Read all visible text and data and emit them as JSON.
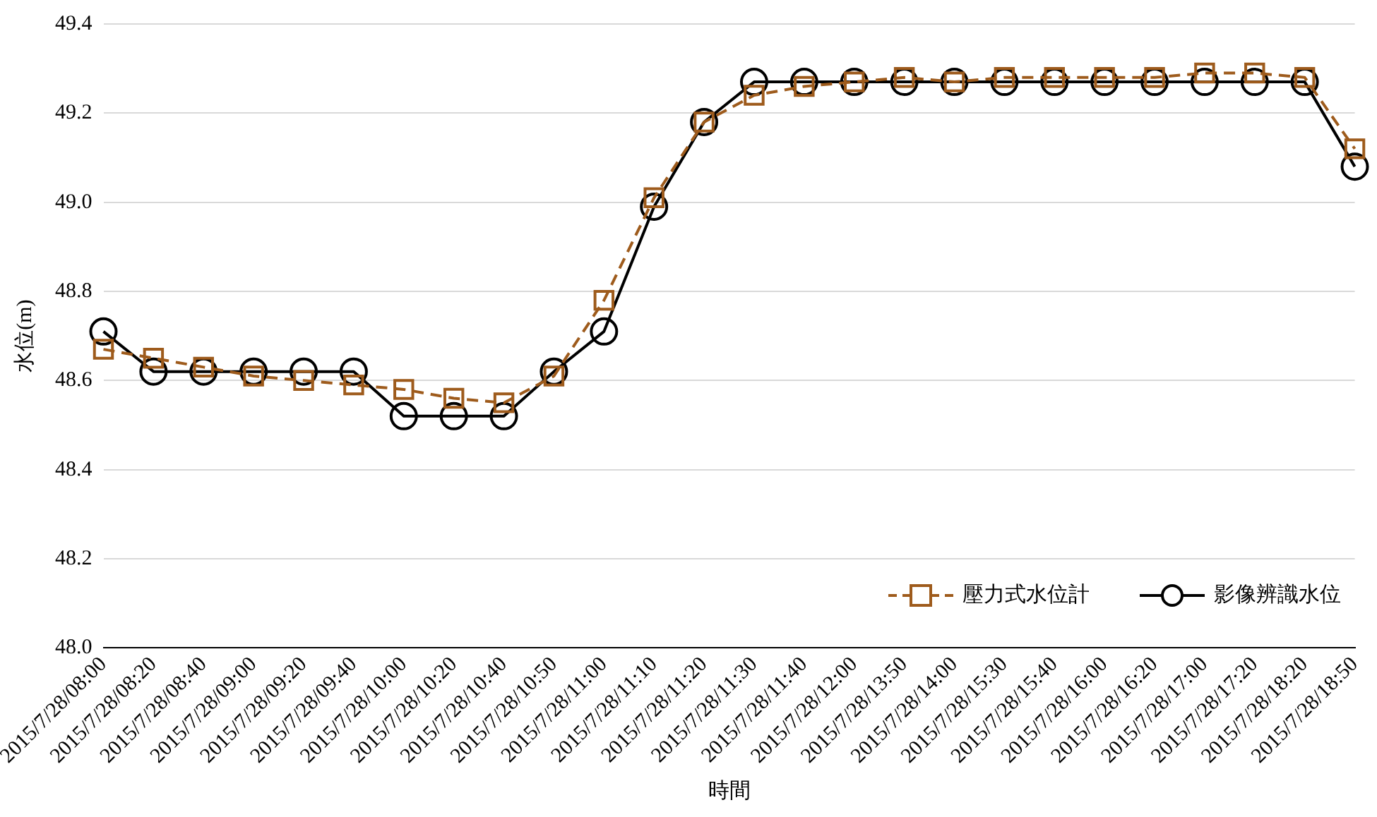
{
  "chart_data": {
    "type": "line",
    "xlabel": "時間",
    "ylabel": "水位(m)",
    "categories": [
      "2015/7/28/08:00",
      "2015/7/28/08:20",
      "2015/7/28/08:40",
      "2015/7/28/09:00",
      "2015/7/28/09:20",
      "2015/7/28/09:40",
      "2015/7/28/10:00",
      "2015/7/28/10:20",
      "2015/7/28/10:40",
      "2015/7/28/10:50",
      "2015/7/28/11:00",
      "2015/7/28/11:10",
      "2015/7/28/11:20",
      "2015/7/28/11:30",
      "2015/7/28/11:40",
      "2015/7/28/12:00",
      "2015/7/28/13:50",
      "2015/7/28/14:00",
      "2015/7/28/15:30",
      "2015/7/28/15:40",
      "2015/7/28/16:00",
      "2015/7/28/16:20",
      "2015/7/28/17:00",
      "2015/7/28/17:20",
      "2015/7/28/18:20",
      "2015/7/28/18:50"
    ],
    "series": [
      {
        "name": "壓力式水位計",
        "color": "#9e5b1c",
        "marker": "square",
        "line_style": "dashed",
        "values": [
          48.67,
          48.65,
          48.63,
          48.61,
          48.6,
          48.59,
          48.58,
          48.56,
          48.55,
          48.61,
          48.78,
          49.01,
          49.18,
          49.24,
          49.26,
          49.27,
          49.28,
          49.27,
          49.28,
          49.28,
          49.28,
          49.28,
          49.29,
          49.29,
          49.28,
          49.12
        ]
      },
      {
        "name": "影像辨識水位",
        "color": "#000000",
        "marker": "circle",
        "line_style": "solid",
        "values": [
          48.71,
          48.62,
          48.62,
          48.62,
          48.62,
          48.62,
          48.52,
          48.52,
          48.52,
          48.62,
          48.71,
          48.99,
          49.18,
          49.27,
          49.27,
          49.27,
          49.27,
          49.27,
          49.27,
          49.27,
          49.27,
          49.27,
          49.27,
          49.27,
          49.27,
          49.08
        ]
      }
    ],
    "ylim": [
      48.0,
      49.4
    ],
    "yticks": [
      {
        "value": 48,
        "label": "48.0"
      },
      48.2,
      48.4,
      48.6,
      48.8,
      {
        "value": 49,
        "label": "49.0"
      },
      49.2,
      49.4
    ],
    "grid": "y",
    "legend": "bottom right"
  }
}
